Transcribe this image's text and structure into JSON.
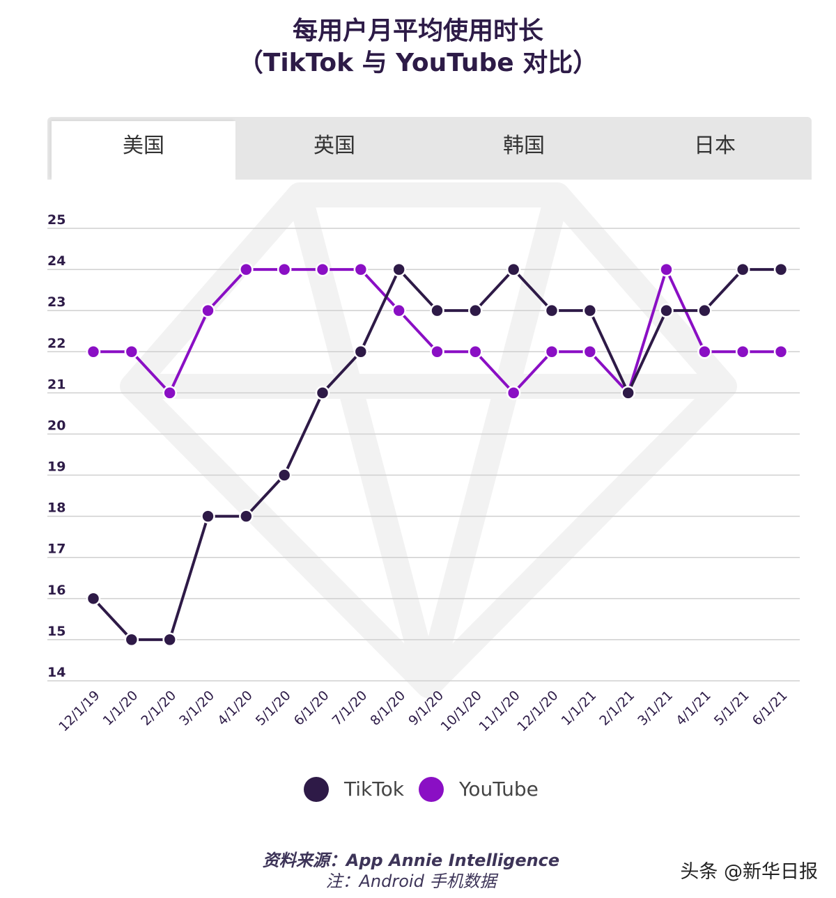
{
  "title_line1": "每用户月平均使用时长",
  "title_line2": "（TikTok 与 YouTube 对比）",
  "tabs": [
    {
      "label": "美国",
      "active": true
    },
    {
      "label": "英国",
      "active": false
    },
    {
      "label": "韩国",
      "active": false
    },
    {
      "label": "日本",
      "active": false
    }
  ],
  "chart_data": {
    "type": "line",
    "title": "每用户月平均使用时长",
    "xlabel": "",
    "ylabel": "",
    "categories": [
      "12/1/19",
      "1/1/20",
      "2/1/20",
      "3/1/20",
      "4/1/20",
      "5/1/20",
      "6/1/20",
      "7/1/20",
      "8/1/20",
      "9/1/20",
      "10/1/20",
      "11/1/20",
      "12/1/20",
      "1/1/21",
      "2/1/21",
      "3/1/21",
      "4/1/21",
      "5/1/21",
      "6/1/21"
    ],
    "yticks": [
      14,
      15,
      16,
      17,
      18,
      19,
      20,
      21,
      22,
      23,
      24,
      25
    ],
    "ylim": [
      14,
      25
    ],
    "grid": true,
    "legend_position": "bottom-center",
    "series": [
      {
        "name": "TikTok",
        "color": "#2e1a47",
        "values": [
          16,
          15,
          15,
          18,
          18,
          19,
          21,
          22,
          24,
          23,
          23,
          24,
          23,
          23,
          21,
          23,
          23,
          24,
          24
        ]
      },
      {
        "name": "YouTube",
        "color": "#8a0fc4",
        "values": [
          22,
          22,
          21,
          23,
          24,
          24,
          24,
          24,
          23,
          22,
          22,
          21,
          22,
          22,
          21,
          24,
          22,
          22,
          22
        ]
      }
    ]
  },
  "legend": [
    {
      "label": "TikTok",
      "color": "#2e1a47"
    },
    {
      "label": "YouTube",
      "color": "#8a0fc4"
    }
  ],
  "source_line1": "资料来源：App Annie Intelligence",
  "source_line2": "注：Android 手机数据",
  "watermark": "头条 @新华日报"
}
